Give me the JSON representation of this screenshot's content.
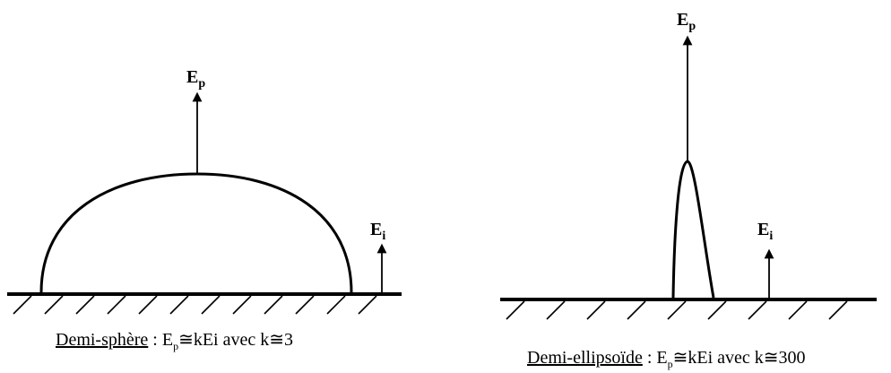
{
  "left": {
    "ep_label": {
      "main": "E",
      "sub": "p"
    },
    "ei_label": {
      "main": "E",
      "sub": "i"
    },
    "caption": {
      "name": "Demi-sphère",
      "sep": " : ",
      "e": "E",
      "e_sub": "p",
      "formula": "≅kEi avec k≅3"
    }
  },
  "right": {
    "ep_label": {
      "main": "E",
      "sub": "p"
    },
    "ei_label": {
      "main": "E",
      "sub": "i"
    },
    "caption": {
      "name": "Demi-ellipsoïde",
      "sep": " : ",
      "e": "E",
      "e_sub": "p",
      "formula": "≅kEi avec k≅300"
    }
  }
}
